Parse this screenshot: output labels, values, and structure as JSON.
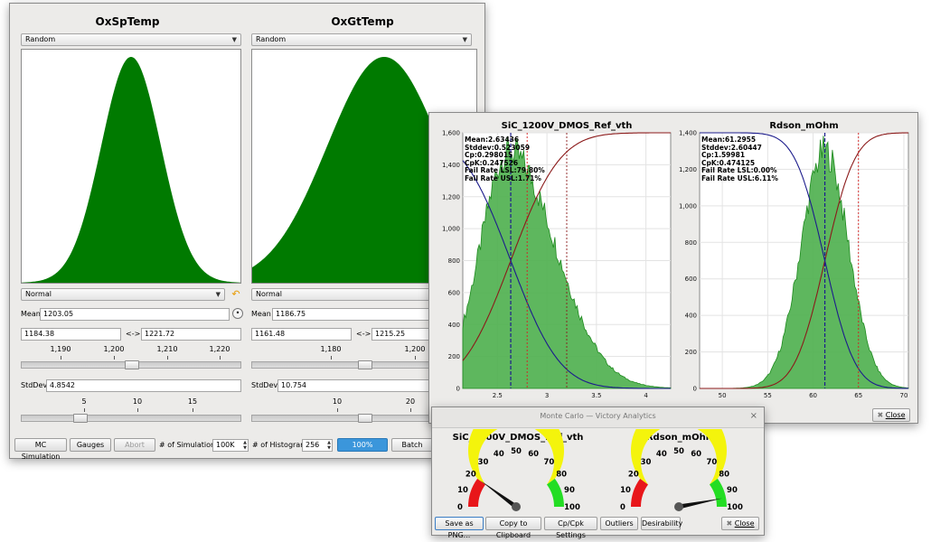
{
  "main_window": {
    "left_panel": {
      "title": "OxSpTemp",
      "distribution_select": "Random",
      "type_select": "Normal",
      "mean_label": "Mean",
      "mean_value": "1203.05",
      "range_min": "1184.38",
      "range_sep": "<->",
      "range_max": "1221.72",
      "mean_ticks": [
        "1,190",
        "1,200",
        "1,210",
        "1,220"
      ],
      "mean_slider_fraction": 0.5,
      "stddev_label": "StdDev",
      "stddev_value": "4.8542",
      "stddev_ticks": [
        "5",
        "10",
        "15"
      ],
      "stddev_slider_fraction": 0.25
    },
    "right_panel": {
      "title": "OxGtTemp",
      "distribution_select": "Random",
      "type_select": "Normal",
      "mean_label": "Mean",
      "mean_value": "1186.75",
      "range_min": "1161.48",
      "range_sep": "<->",
      "range_max": "1215.25",
      "mean_ticks": [
        "1,180",
        "1,200"
      ],
      "mean_slider_fraction": 0.5,
      "stddev_label": "StdDev",
      "stddev_value": "10.754",
      "stddev_ticks": [
        "10",
        "20"
      ],
      "stddev_slider_fraction": 0.5
    },
    "bottom_bar": {
      "mc_simulation_button": "MC Simulation",
      "gauges_button": "Gauges",
      "abort_button": "Abort",
      "num_simulation_label": "# of Simulation",
      "num_simulation_value": "100K",
      "num_histogram_label": "# of Histogram",
      "num_histogram_value": "256",
      "progress_text": "100%",
      "progress_fraction": 1.0,
      "batch_button": "Batch"
    }
  },
  "histogram_window": {
    "close_button": "Close",
    "charts": [
      {
        "title": "SiC_1200V_DMOS_Ref_vth",
        "stats": [
          "Mean:2.63436",
          "Stddev:0.523059",
          "Cp:0.298015",
          "CpK:0.247526",
          "Fail Rate LSL:79.80%",
          "Fail Rate USL:1.71%"
        ]
      },
      {
        "title": "Rdson_mOhm",
        "stats": [
          "Mean:61.2955",
          "Stddev:2.60447",
          "Cp:1.59981",
          "CpK:0.474125",
          "Fail Rate LSL:0.00%",
          "Fail Rate USL:6.11%"
        ]
      }
    ]
  },
  "gauge_window": {
    "title": "Monte Carlo — Victory Analytics",
    "close_x": "×",
    "gauges": [
      {
        "title": "SiC_1200V_DMOS_Ref_vth",
        "labels": [
          "0",
          "10",
          "20",
          "30",
          "40",
          "50",
          "60",
          "70",
          "80",
          "90",
          "100"
        ],
        "value": 20.2
      },
      {
        "title": "Rdson_mOhm",
        "labels": [
          "0",
          "10",
          "20",
          "30",
          "40",
          "50",
          "60",
          "70",
          "80",
          "90",
          "100"
        ],
        "value": 93.9
      }
    ],
    "buttons": {
      "save_png": "Save as PNG...",
      "copy_clipboard": "Copy to Clipboard",
      "cp_cpk_settings": "Cp/Cpk Settings",
      "outliers": "Outliers",
      "desirability": "Desirability",
      "close": "Close"
    }
  },
  "chart_data": [
    {
      "type": "bar",
      "title": "SiC_1200V_DMOS_Ref_vth",
      "xlim": [
        2.15,
        4.25
      ],
      "ylim": [
        0,
        1600
      ],
      "x_ticks": [
        "2.5",
        "3",
        "3.5",
        "4"
      ],
      "y_ticks": [
        "0",
        "200",
        "400",
        "600",
        "800",
        "1,000",
        "1,200",
        "1,400",
        "1,600"
      ],
      "distribution": {
        "mean": 2.63436,
        "stddev": 0.523059,
        "skew": "right",
        "peak_count": 1480
      },
      "mean_line": 2.63436,
      "limit_lines": [
        2.8,
        3.2
      ],
      "series": [
        {
          "kind": "histogram",
          "color": "#3c9d3c"
        },
        {
          "kind": "cdf",
          "color": "#8b1a1a"
        },
        {
          "kind": "reverse_cdf",
          "color": "#1c1c8c"
        }
      ]
    },
    {
      "type": "bar",
      "title": "Rdson_mOhm",
      "xlim": [
        47.5,
        70.5
      ],
      "ylim": [
        0,
        1400
      ],
      "x_ticks": [
        "50",
        "55",
        "60",
        "65",
        "70"
      ],
      "y_ticks": [
        "0",
        "200",
        "400",
        "600",
        "800",
        "1,000",
        "1,200",
        "1,400"
      ],
      "distribution": {
        "mean": 61.2955,
        "stddev": 2.60447,
        "skew": "none",
        "peak_count": 1300
      },
      "mean_line": 61.2955,
      "limit_lines": [
        65
      ],
      "series": [
        {
          "kind": "histogram",
          "color": "#3c9d3c"
        },
        {
          "kind": "cdf",
          "color": "#8b1a1a"
        },
        {
          "kind": "reverse_cdf",
          "color": "#1c1c8c"
        }
      ]
    }
  ],
  "colors": {
    "histogram_main": "#007a00",
    "gauge_red": "#e8161a",
    "gauge_yellow": "#f4f40c",
    "gauge_green": "#23dd23",
    "progress_blue": "#3b96db"
  }
}
